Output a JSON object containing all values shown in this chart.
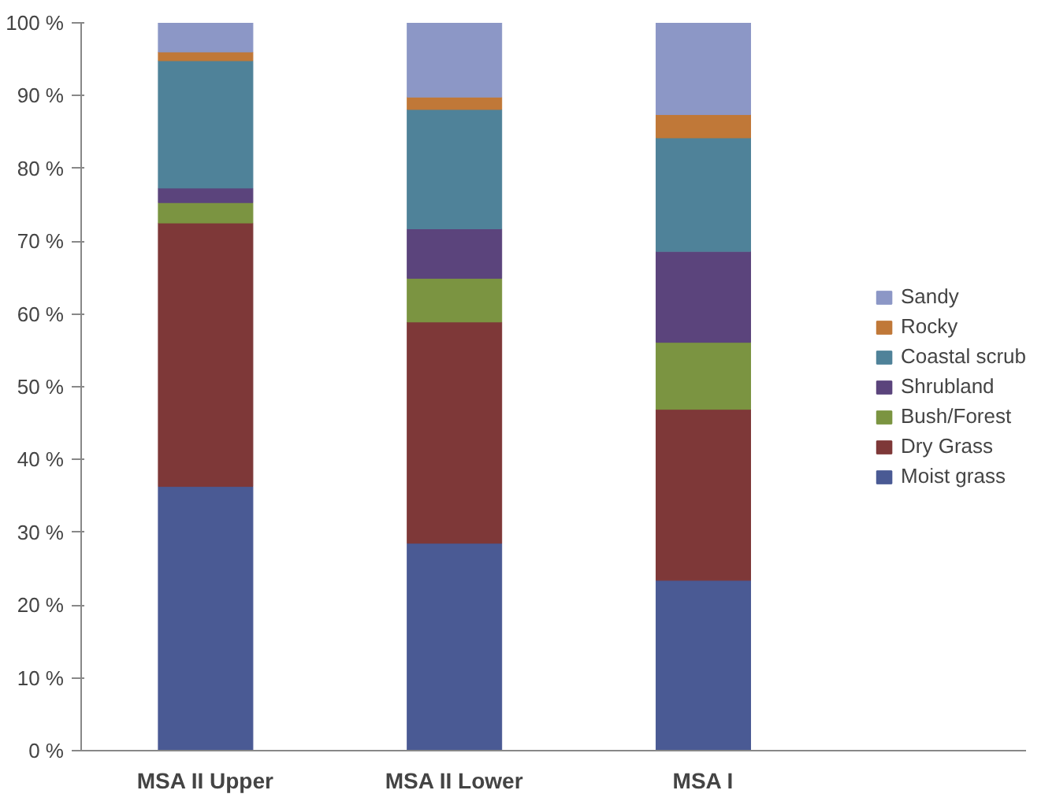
{
  "chart_data": {
    "type": "bar",
    "stacked": true,
    "categories": [
      "MSA II Upper",
      "MSA II Lower",
      "MSA I"
    ],
    "series": [
      {
        "name": "Moist grass",
        "color": "#4a5a94",
        "values": [
          36.3,
          28.5,
          23.4
        ]
      },
      {
        "name": "Dry Grass",
        "color": "#7e3838",
        "values": [
          36.2,
          30.4,
          23.5
        ]
      },
      {
        "name": "Bush/Forest",
        "color": "#7b9441",
        "values": [
          2.8,
          6.0,
          9.2
        ]
      },
      {
        "name": "Shrubland",
        "color": "#5b447c",
        "values": [
          2.0,
          6.8,
          12.5
        ]
      },
      {
        "name": "Coastal scrub",
        "color": "#4f8299",
        "values": [
          17.5,
          16.4,
          15.6
        ]
      },
      {
        "name": "Rocky",
        "color": "#c07838",
        "values": [
          1.2,
          1.7,
          3.2
        ]
      },
      {
        "name": "Sandy",
        "color": "#8c97c6",
        "values": [
          4.0,
          10.2,
          12.6
        ]
      }
    ],
    "ylim": [
      0,
      100
    ],
    "yticks": [
      {
        "value": 0,
        "label": "0 %"
      },
      {
        "value": 10,
        "label": "10 %"
      },
      {
        "value": 20,
        "label": "20 %"
      },
      {
        "value": 30,
        "label": "30 %"
      },
      {
        "value": 40,
        "label": "40 %"
      },
      {
        "value": 50,
        "label": "50 %"
      },
      {
        "value": 60,
        "label": "60 %"
      },
      {
        "value": 70,
        "label": "70 %"
      },
      {
        "value": 80,
        "label": "80 %"
      },
      {
        "value": 90,
        "label": "90 %"
      },
      {
        "value": 100,
        "label": "100 %"
      }
    ],
    "grid": false,
    "legend": "right"
  }
}
